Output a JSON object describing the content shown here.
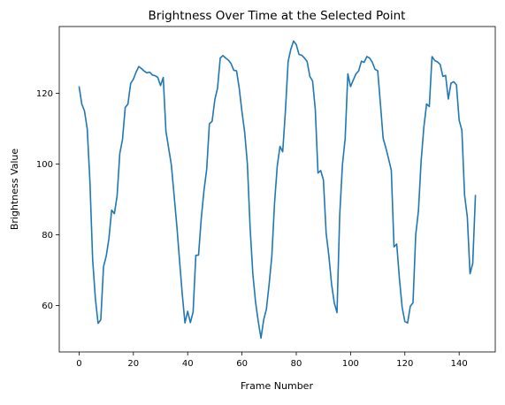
{
  "chart_data": {
    "type": "line",
    "title": "Brightness Over Time at the Selected Point",
    "xlabel": "Frame Number",
    "ylabel": "Brightness Value",
    "xlim": [
      -7.3,
      153.3
    ],
    "ylim": [
      46.9,
      138.9
    ],
    "xticks": [
      0,
      20,
      40,
      60,
      80,
      100,
      120,
      140
    ],
    "yticks": [
      60,
      80,
      100,
      120
    ],
    "grid": false,
    "line_color": "#1f77b4",
    "series": [
      {
        "x": [
          0,
          1,
          2,
          3,
          4,
          5,
          6,
          7,
          8,
          9,
          10,
          11,
          12,
          13,
          14,
          15,
          16,
          17,
          18,
          19,
          20,
          21,
          22,
          23,
          24,
          25,
          26,
          27,
          28,
          29,
          30,
          31,
          32,
          33,
          34,
          35,
          36,
          37,
          38,
          39,
          40,
          41,
          42,
          43,
          44,
          45,
          46,
          47,
          48,
          49,
          50,
          51,
          52,
          53,
          54,
          55,
          56,
          57,
          58,
          59,
          60,
          61,
          62,
          63,
          64,
          65,
          66,
          67,
          68,
          69,
          70,
          71,
          72,
          73,
          74,
          75,
          76,
          77,
          78,
          79,
          80,
          81,
          82,
          83,
          84,
          85,
          86,
          87,
          88,
          89,
          90,
          91,
          92,
          93,
          94,
          95,
          96,
          97,
          98,
          99,
          100,
          101,
          102,
          103,
          104,
          105,
          106,
          107,
          108,
          109,
          110,
          111,
          112,
          113,
          114,
          115,
          116,
          117,
          118,
          119,
          120,
          121,
          122,
          123,
          124,
          125,
          126,
          127,
          128,
          129,
          130,
          131,
          132,
          133,
          134,
          135,
          136,
          137,
          138,
          139,
          140,
          141,
          142,
          143,
          144,
          145,
          146
        ],
        "y": [
          122,
          117,
          115,
          110,
          95,
          73,
          62,
          55,
          56,
          71,
          74,
          79,
          87,
          86,
          91,
          103,
          107,
          116,
          117,
          122.8,
          124,
          126,
          127.6,
          127,
          126.3,
          125.8,
          126,
          125.2,
          125,
          124.5,
          122.2,
          124.5,
          109.2,
          104.5,
          99.7,
          91.2,
          82.6,
          72.8,
          63.3,
          55.1,
          58.4,
          55.2,
          58.2,
          74.2,
          74.3,
          84.6,
          92.5,
          98.5,
          111.4,
          112.1,
          118.2,
          121.5,
          130,
          130.7,
          130,
          129.4,
          128.4,
          126.5,
          126.4,
          121.4,
          114.8,
          109,
          100,
          82,
          69,
          61,
          55.5,
          50.8,
          56,
          59,
          66,
          74,
          89,
          99.5,
          105,
          103.5,
          115,
          129,
          132.5,
          134.8,
          133.8,
          131,
          130.8,
          130,
          129,
          124.8,
          123.5,
          115.5,
          97.5,
          98.2,
          95.5,
          80.5,
          74.1,
          66.1,
          60.8,
          58,
          85.5,
          99.8,
          107.1,
          125.5,
          121.9,
          123.8,
          125.5,
          126.4,
          129.1,
          128.8,
          130.4,
          130,
          128.8,
          126.8,
          126.4,
          117,
          107.3,
          104.6,
          101.5,
          98.3,
          76.6,
          77.4,
          67.6,
          59.5,
          55.5,
          55.1,
          59.8,
          60.8,
          80,
          86.8,
          101,
          110.5,
          117,
          116.3,
          130.4,
          129.3,
          128.9,
          128.2,
          124.8,
          125.1,
          118.4,
          122.9,
          123.3,
          122.4,
          112.4,
          109.6,
          91.2,
          85.1,
          69,
          71.9,
          91.3
        ]
      }
    ]
  }
}
